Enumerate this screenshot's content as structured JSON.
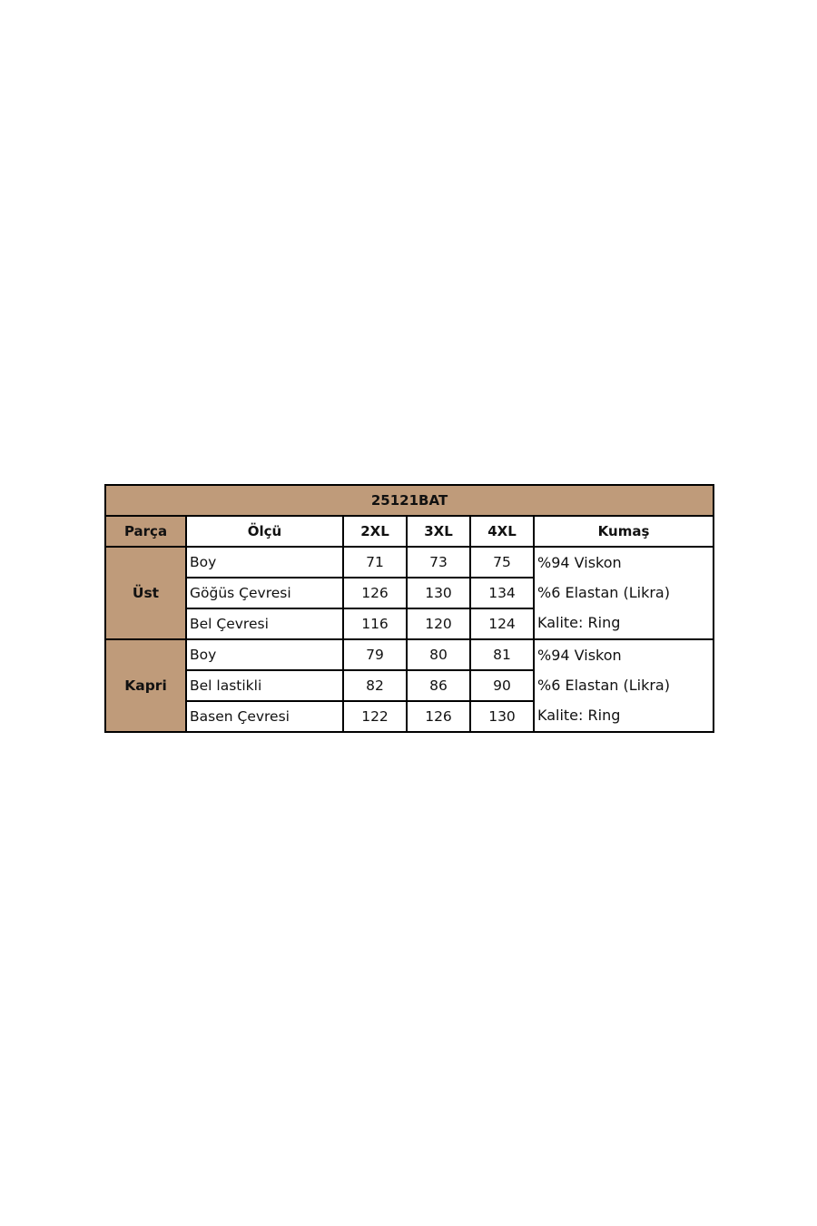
{
  "table": {
    "title": "25121BAT",
    "headers": [
      "Parça",
      "Ölçü",
      "2XL",
      "3XL",
      "4XL",
      "Kumaş"
    ],
    "accent_color": "#BF9B7A",
    "groups": [
      {
        "part": "Üst",
        "rows": [
          {
            "measure": "Boy",
            "values": [
              "71",
              "73",
              "75"
            ]
          },
          {
            "measure": "Göğüs Çevresi",
            "values": [
              "126",
              "130",
              "134"
            ]
          },
          {
            "measure": "Bel Çevresi",
            "values": [
              "116",
              "120",
              "124"
            ]
          }
        ],
        "fabric": [
          "%94 Viskon",
          "%6 Elastan (Likra)",
          "Kalite: Ring"
        ]
      },
      {
        "part": "Kapri",
        "rows": [
          {
            "measure": "Boy",
            "values": [
              "79",
              "80",
              "81"
            ]
          },
          {
            "measure": "Bel lastikli",
            "values": [
              "82",
              "86",
              "90"
            ]
          },
          {
            "measure": "Basen Çevresi",
            "values": [
              "122",
              "126",
              "130"
            ]
          }
        ],
        "fabric": [
          "%94 Viskon",
          "%6 Elastan (Likra)",
          "Kalite: Ring"
        ]
      }
    ]
  }
}
